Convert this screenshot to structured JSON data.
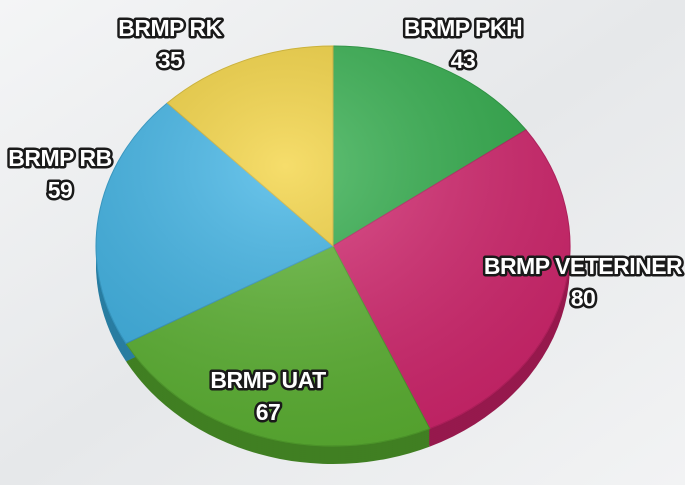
{
  "chart_data": {
    "type": "pie",
    "categories": [
      "BRMP PKH",
      "BRMP VETERINER",
      "BRMP UAT",
      "BRMP RB",
      "BRMP RK"
    ],
    "values": [
      43,
      80,
      67,
      59,
      35
    ],
    "colors": [
      "#2fae4a",
      "#d6246e",
      "#5cb531",
      "#3bb3e6",
      "#f3d23a"
    ]
  }
}
